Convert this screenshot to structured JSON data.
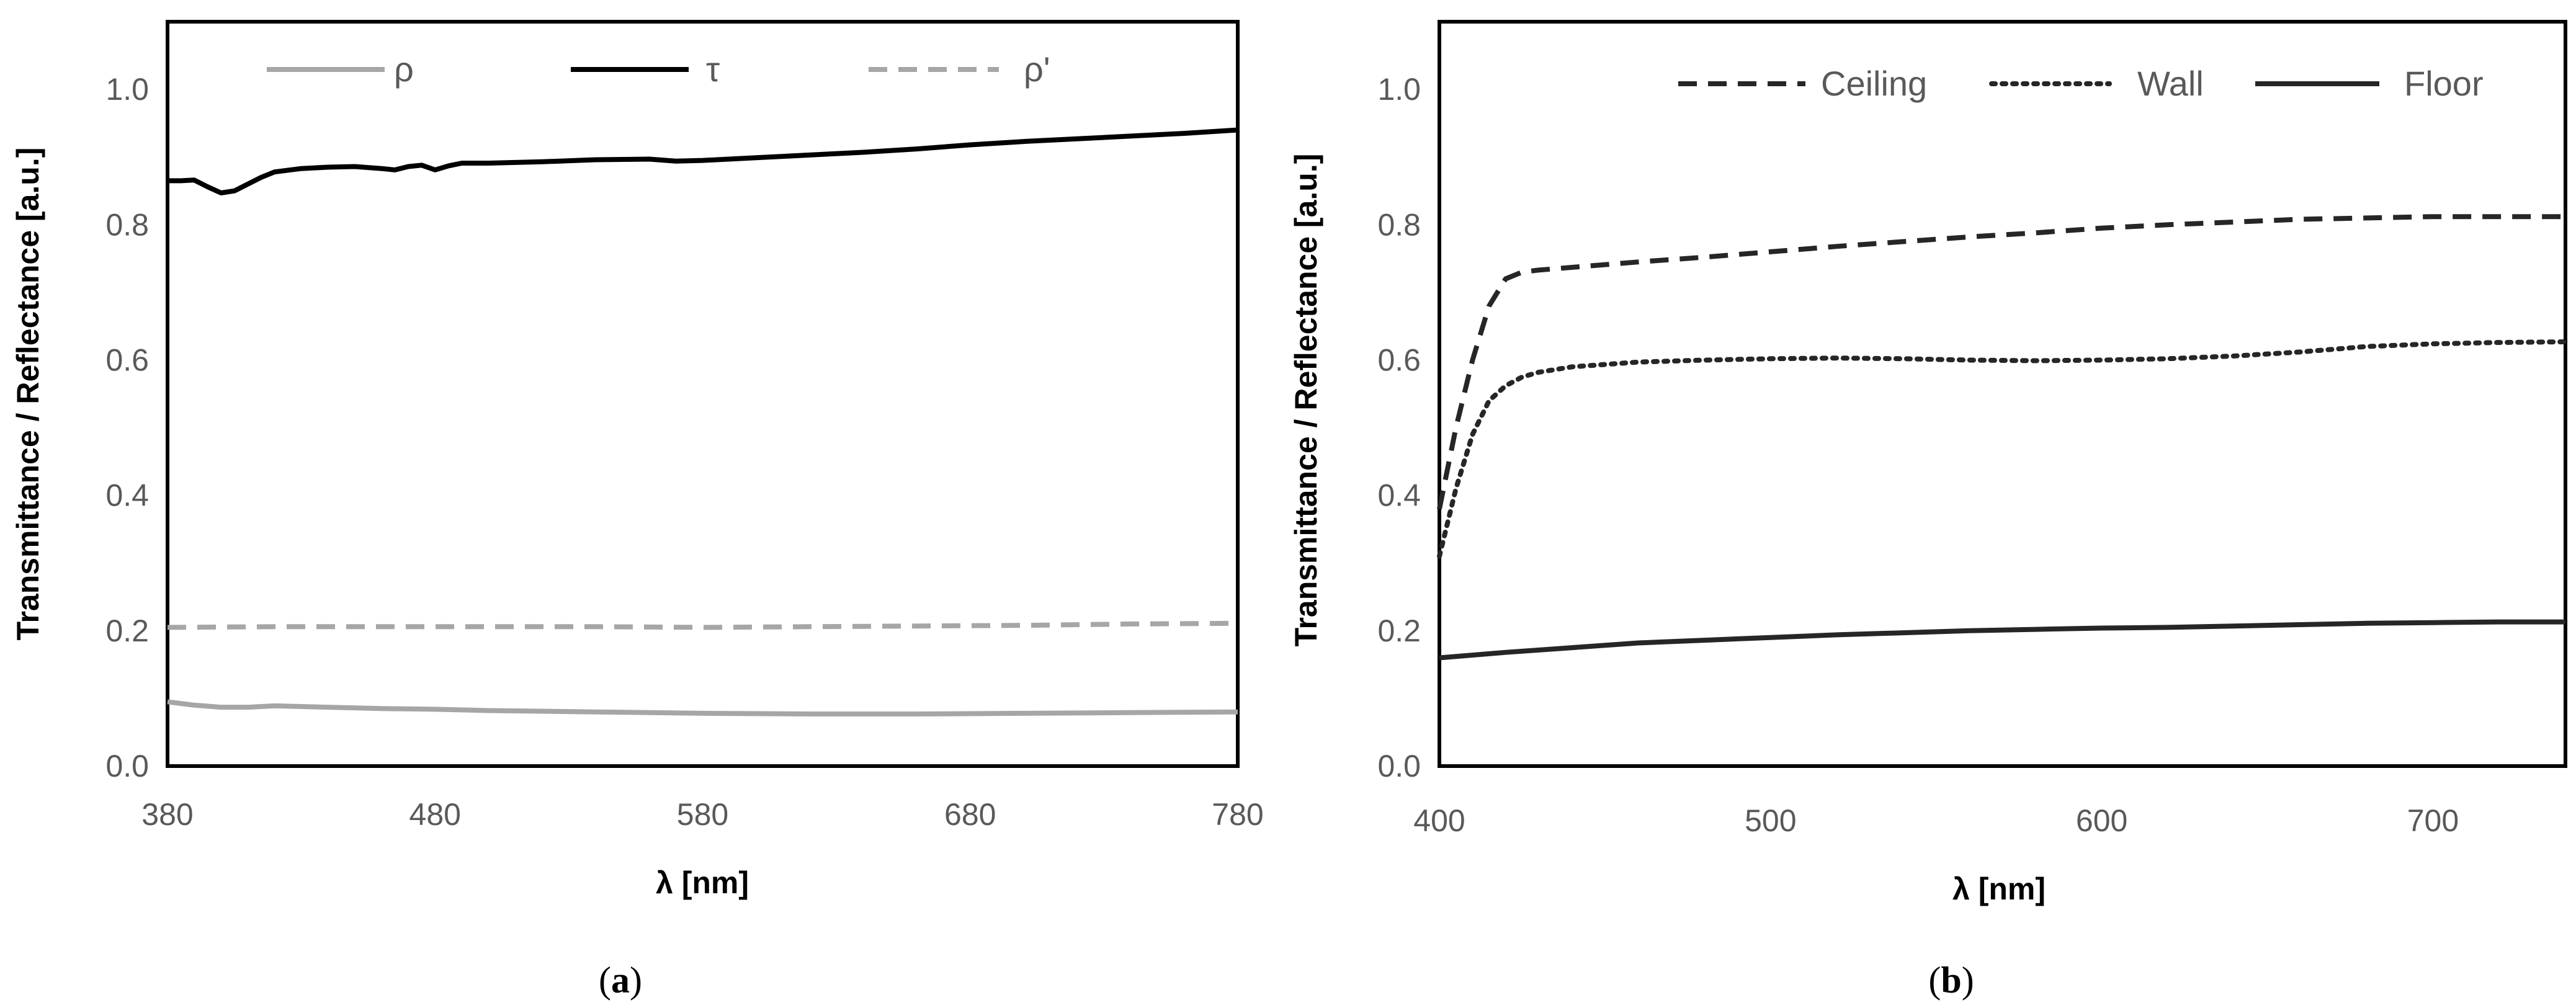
{
  "chart_data": [
    {
      "type": "line",
      "panel_label": "a",
      "title": "",
      "xlabel": "λ [nm]",
      "ylabel": "Transmittance / Reflectance [a.u.]",
      "xlim": [
        380,
        780
      ],
      "ylim": [
        0,
        1.1
      ],
      "xticks": [
        380,
        480,
        580,
        680,
        780
      ],
      "yticks": [
        0.0,
        0.2,
        0.4,
        0.6,
        0.8,
        1.0
      ],
      "ytick_labels": [
        "0.0",
        "0.2",
        "0.4",
        "0.6",
        "0.8",
        "1.0"
      ],
      "grid": false,
      "legend_position": "top",
      "series": [
        {
          "name": "ρ",
          "color": "#a6a6a6",
          "style": "solid",
          "x": [
            380,
            390,
            400,
            410,
            420,
            430,
            440,
            460,
            480,
            500,
            540,
            580,
            620,
            660,
            700,
            740,
            780
          ],
          "y": [
            0.095,
            0.09,
            0.087,
            0.087,
            0.089,
            0.088,
            0.087,
            0.085,
            0.084,
            0.082,
            0.08,
            0.078,
            0.077,
            0.077,
            0.078,
            0.079,
            0.08
          ]
        },
        {
          "name": "τ",
          "color": "#000000",
          "style": "solid",
          "x": [
            380,
            385,
            390,
            395,
            400,
            405,
            410,
            415,
            420,
            430,
            440,
            450,
            460,
            465,
            470,
            475,
            480,
            485,
            490,
            500,
            520,
            540,
            560,
            570,
            580,
            600,
            620,
            640,
            660,
            680,
            700,
            720,
            740,
            760,
            780
          ],
          "y": [
            0.865,
            0.865,
            0.866,
            0.856,
            0.847,
            0.85,
            0.86,
            0.87,
            0.878,
            0.883,
            0.885,
            0.886,
            0.883,
            0.881,
            0.886,
            0.888,
            0.881,
            0.887,
            0.891,
            0.891,
            0.893,
            0.896,
            0.897,
            0.894,
            0.895,
            0.899,
            0.903,
            0.907,
            0.912,
            0.918,
            0.923,
            0.927,
            0.931,
            0.935,
            0.94
          ]
        },
        {
          "name": "ρ'",
          "color": "#a6a6a6",
          "style": "dashed",
          "x": [
            380,
            420,
            460,
            500,
            540,
            580,
            620,
            660,
            700,
            740,
            780
          ],
          "y": [
            0.205,
            0.206,
            0.206,
            0.206,
            0.206,
            0.205,
            0.206,
            0.207,
            0.208,
            0.21,
            0.211
          ]
        }
      ]
    },
    {
      "type": "line",
      "panel_label": "b",
      "title": "",
      "xlabel": "λ [nm]",
      "ylabel": "Transmittance / Reflectance [a.u.]",
      "xlim": [
        400,
        740
      ],
      "ylim": [
        0,
        1.1
      ],
      "xticks": [
        400,
        500,
        600,
        700
      ],
      "yticks": [
        0.0,
        0.2,
        0.4,
        0.6,
        0.8,
        1.0
      ],
      "ytick_labels": [
        "0.0",
        "0.2",
        "0.4",
        "0.6",
        "0.8",
        "1.0"
      ],
      "grid": false,
      "legend_position": "top-right",
      "series": [
        {
          "name": "Ceiling",
          "color": "#262626",
          "style": "dashed",
          "x": [
            400,
            405,
            410,
            415,
            420,
            425,
            430,
            440,
            460,
            480,
            500,
            520,
            540,
            560,
            580,
            600,
            620,
            640,
            660,
            680,
            700,
            720,
            740
          ],
          "y": [
            0.38,
            0.5,
            0.6,
            0.68,
            0.72,
            0.73,
            0.733,
            0.737,
            0.745,
            0.752,
            0.76,
            0.768,
            0.775,
            0.782,
            0.788,
            0.795,
            0.8,
            0.804,
            0.808,
            0.81,
            0.812,
            0.812,
            0.812
          ]
        },
        {
          "name": "Wall",
          "color": "#262626",
          "style": "dotted",
          "x": [
            400,
            405,
            410,
            415,
            420,
            425,
            430,
            440,
            460,
            480,
            500,
            520,
            540,
            560,
            580,
            600,
            620,
            640,
            660,
            680,
            700,
            720,
            740
          ],
          "y": [
            0.31,
            0.41,
            0.49,
            0.54,
            0.562,
            0.575,
            0.582,
            0.59,
            0.597,
            0.6,
            0.602,
            0.603,
            0.602,
            0.6,
            0.599,
            0.6,
            0.602,
            0.606,
            0.612,
            0.62,
            0.624,
            0.626,
            0.627
          ]
        },
        {
          "name": "Floor",
          "color": "#262626",
          "style": "solid",
          "x": [
            400,
            420,
            440,
            460,
            480,
            500,
            520,
            540,
            560,
            580,
            600,
            620,
            640,
            660,
            680,
            700,
            720,
            740
          ],
          "y": [
            0.16,
            0.168,
            0.175,
            0.182,
            0.186,
            0.19,
            0.194,
            0.197,
            0.2,
            0.202,
            0.204,
            0.205,
            0.207,
            0.209,
            0.211,
            0.212,
            0.213,
            0.213
          ]
        }
      ]
    }
  ]
}
